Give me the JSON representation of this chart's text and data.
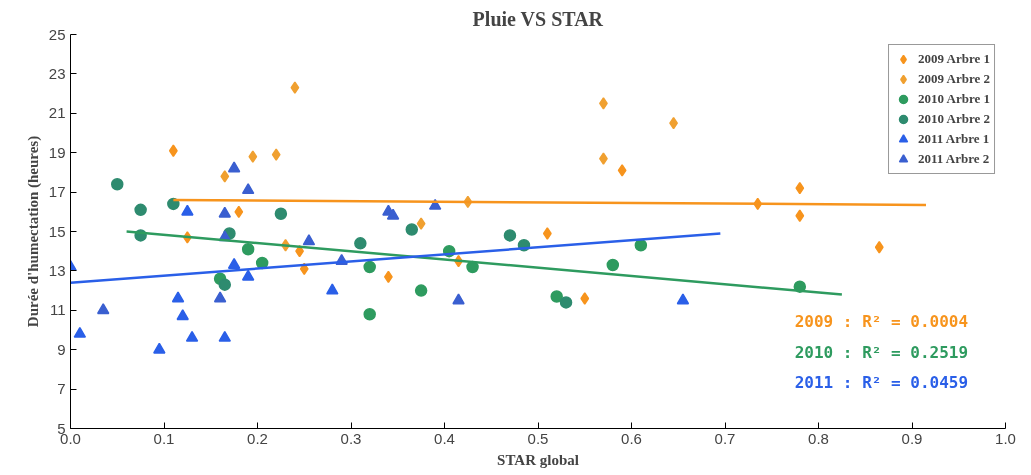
{
  "chart_data": {
    "type": "scatter",
    "title": "Pluie VS STAR",
    "xlabel": "STAR global",
    "ylabel": "Durée d'humectation (heures)",
    "xlim": [
      0,
      1
    ],
    "xticks": [
      {
        "value": 0,
        "label": "0.0"
      },
      0.1,
      0.2,
      0.3,
      0.4,
      0.5,
      0.6,
      0.7,
      0.8,
      0.9,
      {
        "value": 1,
        "label": "1.0"
      }
    ],
    "ylim": [
      5,
      25
    ],
    "yticks": [
      5,
      7,
      9,
      11,
      13,
      15,
      17,
      19,
      21,
      23,
      25
    ],
    "grid": false,
    "legend": "top right",
    "series": [
      {
        "name": "2009 Arbre 1",
        "color": "#f7941d",
        "marker": "diamond",
        "x": [
          0.11,
          0.125,
          0.18,
          0.245,
          0.25,
          0.34,
          0.415,
          0.51,
          0.55,
          0.59,
          0.735,
          0.78,
          0.78,
          0.865
        ],
        "values": [
          19.1,
          14.7,
          16.0,
          14.0,
          13.1,
          12.7,
          13.5,
          14.9,
          11.6,
          18.1,
          16.4,
          17.2,
          15.8,
          14.2
        ]
      },
      {
        "name": "2009 Arbre 2",
        "color": "#f0a030",
        "marker": "diamond",
        "x": [
          0.165,
          0.195,
          0.22,
          0.23,
          0.24,
          0.375,
          0.425,
          0.57,
          0.57,
          0.645
        ],
        "values": [
          17.8,
          18.8,
          18.9,
          14.3,
          22.3,
          15.4,
          16.5,
          21.5,
          18.7,
          20.5
        ]
      },
      {
        "name": "2010 Arbre 1",
        "color": "#2e9b5f",
        "marker": "circle",
        "x": [
          0.16,
          0.19,
          0.205,
          0.32,
          0.32,
          0.375,
          0.405,
          0.43,
          0.52,
          0.58,
          0.61,
          0.78
        ],
        "values": [
          12.6,
          14.1,
          13.4,
          10.8,
          13.2,
          12.0,
          14.0,
          13.2,
          11.7,
          13.3,
          14.3,
          12.2
        ]
      },
      {
        "name": "2010 Arbre 2",
        "color": "#2e8b6f",
        "marker": "circle",
        "x": [
          0.05,
          0.075,
          0.075,
          0.11,
          0.165,
          0.17,
          0.225,
          0.31,
          0.365,
          0.47,
          0.485,
          0.53
        ],
        "values": [
          17.4,
          16.1,
          14.8,
          16.4,
          12.3,
          14.9,
          15.9,
          14.4,
          15.1,
          14.8,
          14.3,
          11.4
        ]
      },
      {
        "name": "2011 Arbre 1",
        "color": "#2a5fe8",
        "marker": "triangle",
        "x": [
          0.0,
          0.01,
          0.095,
          0.115,
          0.12,
          0.125,
          0.13,
          0.165,
          0.175,
          0.19,
          0.28,
          0.655
        ],
        "values": [
          13.2,
          9.8,
          9.0,
          11.6,
          10.7,
          16.0,
          9.6,
          9.6,
          13.3,
          12.7,
          12.0,
          11.5
        ]
      },
      {
        "name": "2011 Arbre 2",
        "color": "#3a5fd0",
        "marker": "triangle",
        "x": [
          0.035,
          0.16,
          0.165,
          0.165,
          0.175,
          0.19,
          0.255,
          0.29,
          0.34,
          0.345,
          0.39,
          0.415
        ],
        "values": [
          11.0,
          11.6,
          15.9,
          14.7,
          18.2,
          17.1,
          14.5,
          13.5,
          16.0,
          15.8,
          16.3,
          11.5
        ]
      },
      {
        "type": "line",
        "color": "#f7941d",
        "marker": "none",
        "x": [
          0.11,
          0.915
        ],
        "values": [
          16.6,
          16.35
        ]
      },
      {
        "type": "line",
        "color": "#2e9b5f",
        "marker": "none",
        "x": [
          0.06,
          0.825
        ],
        "values": [
          15.0,
          11.8
        ]
      },
      {
        "type": "line",
        "color": "#2a5fe8",
        "marker": "none",
        "x": [
          0.0,
          0.695
        ],
        "values": [
          12.4,
          14.9
        ]
      }
    ],
    "annotations": [
      "2009 : R² = 0.0004",
      "2010 : R² = 0.2519",
      "2011 : R² = 0.0459"
    ]
  }
}
